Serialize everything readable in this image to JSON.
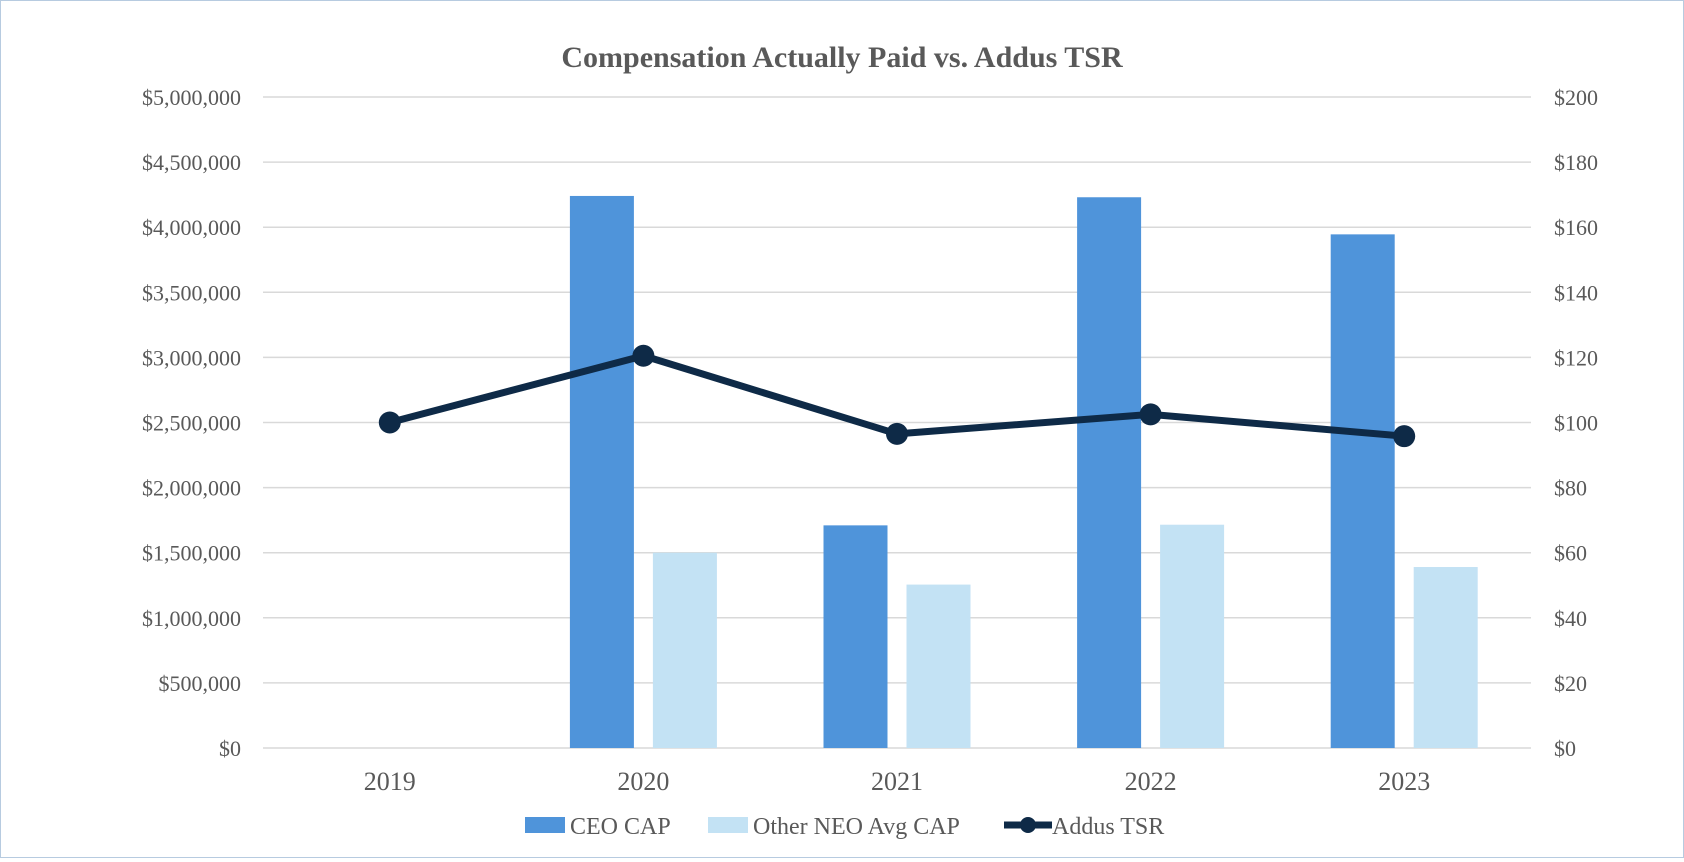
{
  "chart_data": {
    "type": "bar",
    "title": "Compensation Actually Paid vs. Addus TSR",
    "categories": [
      "2019",
      "2020",
      "2021",
      "2022",
      "2023"
    ],
    "series": [
      {
        "name": "CEO CAP",
        "kind": "bar",
        "axis": "left",
        "color": "#4F94DA",
        "values": [
          0,
          4240000,
          1710000,
          4230000,
          3945000
        ]
      },
      {
        "name": "Other NEO Avg CAP",
        "kind": "bar",
        "axis": "left",
        "color": "#C3E2F4",
        "values": [
          0,
          1500000,
          1255000,
          1715000,
          1390000
        ]
      },
      {
        "name": "Addus TSR",
        "kind": "line",
        "axis": "right",
        "color": "#0E2A47",
        "values": [
          100,
          120.5,
          96.5,
          102.5,
          95.8
        ]
      }
    ],
    "left_axis": {
      "ylim": [
        0,
        5000000
      ],
      "ticks": [
        0,
        500000,
        1000000,
        1500000,
        2000000,
        2500000,
        3000000,
        3500000,
        4000000,
        4500000,
        5000000
      ],
      "tick_labels": [
        "$0",
        "$500,000",
        "$1,000,000",
        "$1,500,000",
        "$2,000,000",
        "$2,500,000",
        "$3,000,000",
        "$3,500,000",
        "$4,000,000",
        "$4,500,000",
        "$5,000,000"
      ]
    },
    "right_axis": {
      "ylim": [
        0,
        200
      ],
      "ticks": [
        0,
        20,
        40,
        60,
        80,
        100,
        120,
        140,
        160,
        180,
        200
      ],
      "tick_labels": [
        "$0",
        "$20",
        "$40",
        "$60",
        "$80",
        "$100",
        "$120",
        "$140",
        "$160",
        "$180",
        "$200"
      ]
    },
    "grid": true,
    "legend_position": "bottom",
    "legend": [
      "CEO CAP",
      "Other NEO Avg CAP",
      "Addus TSR"
    ]
  }
}
